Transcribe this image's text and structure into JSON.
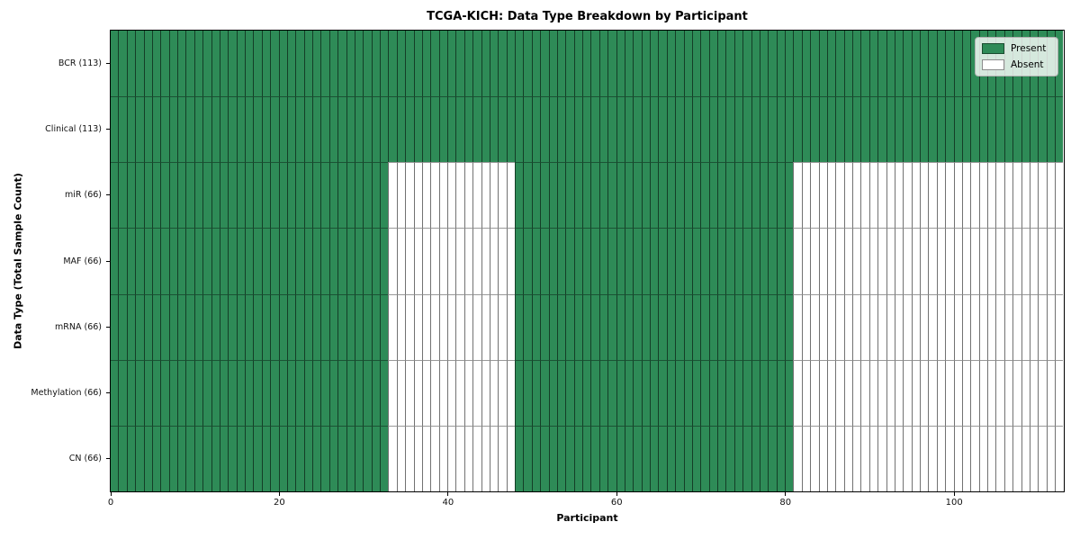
{
  "chart_data": {
    "type": "heatmap",
    "title": "TCGA-KICH: Data Type Breakdown by Participant",
    "xlabel": "Participant",
    "ylabel": "Data Type (Total Sample Count)",
    "n_participants": 113,
    "x_ticks": [
      0,
      20,
      40,
      60,
      80,
      100
    ],
    "xlim": [
      0,
      113
    ],
    "grid": false,
    "legend_position": "upper right",
    "colors": {
      "present": "#2e8b57",
      "absent": "#ffffff"
    },
    "legend": [
      {
        "key": "present",
        "label": "Present",
        "color": "#2e8b57"
      },
      {
        "key": "absent",
        "label": "Absent",
        "color": "#ffffff"
      }
    ],
    "rows": [
      {
        "label": "BCR (113)",
        "data_type": "BCR",
        "total_samples": 113,
        "present_ranges": [
          [
            0,
            113
          ]
        ]
      },
      {
        "label": "Clinical (113)",
        "data_type": "Clinical",
        "total_samples": 113,
        "present_ranges": [
          [
            0,
            113
          ]
        ]
      },
      {
        "label": "miR (66)",
        "data_type": "miR",
        "total_samples": 66,
        "present_ranges": [
          [
            0,
            33
          ],
          [
            48,
            81
          ]
        ]
      },
      {
        "label": "MAF (66)",
        "data_type": "MAF",
        "total_samples": 66,
        "present_ranges": [
          [
            0,
            33
          ],
          [
            48,
            81
          ]
        ]
      },
      {
        "label": "mRNA (66)",
        "data_type": "mRNA",
        "total_samples": 66,
        "present_ranges": [
          [
            0,
            33
          ],
          [
            48,
            81
          ]
        ]
      },
      {
        "label": "Methylation (66)",
        "data_type": "Methylation",
        "total_samples": 66,
        "present_ranges": [
          [
            0,
            33
          ],
          [
            48,
            81
          ]
        ]
      },
      {
        "label": "CN (66)",
        "data_type": "CN",
        "total_samples": 66,
        "present_ranges": [
          [
            0,
            33
          ],
          [
            48,
            81
          ]
        ]
      }
    ]
  }
}
